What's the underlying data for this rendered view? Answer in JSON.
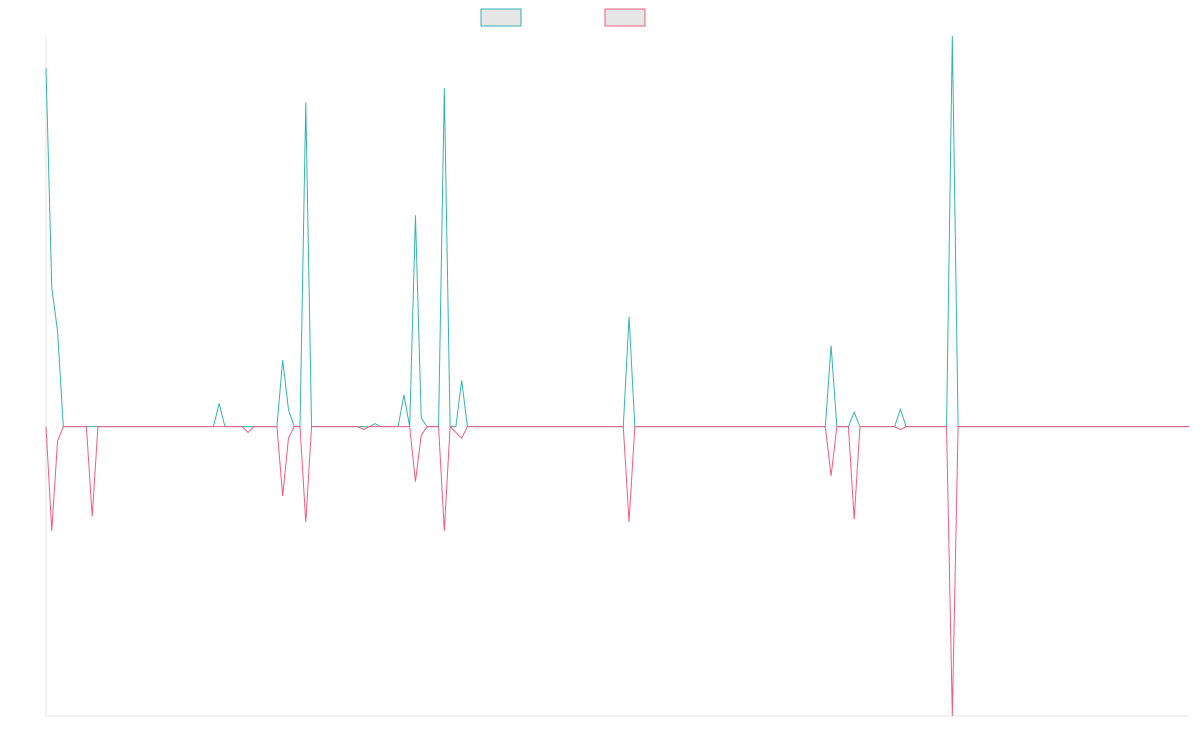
{
  "chart_data": {
    "type": "line",
    "title": "",
    "xlabel": "",
    "ylabel": "",
    "grid": false,
    "legend_placement": "top-center",
    "x_count": 199,
    "ylim": [
      -100,
      135
    ],
    "series": [
      {
        "color": "#36b3b3",
        "points": [
          [
            0,
            124
          ],
          [
            1,
            48
          ],
          [
            2,
            33
          ],
          [
            3,
            0
          ],
          [
            29,
            0
          ],
          [
            30,
            8
          ],
          [
            31,
            0
          ],
          [
            34,
            0
          ],
          [
            35,
            0
          ],
          [
            36,
            0
          ],
          [
            40,
            0
          ],
          [
            41,
            23
          ],
          [
            42,
            6
          ],
          [
            43,
            0
          ],
          [
            44,
            0
          ],
          [
            45,
            112
          ],
          [
            46,
            0
          ],
          [
            54,
            0
          ],
          [
            55,
            0
          ],
          [
            56,
            0
          ],
          [
            57,
            1
          ],
          [
            58,
            0
          ],
          [
            61,
            0
          ],
          [
            62,
            11
          ],
          [
            63,
            0
          ],
          [
            64,
            73
          ],
          [
            65,
            3
          ],
          [
            66,
            0
          ],
          [
            68,
            0
          ],
          [
            69,
            117
          ],
          [
            70,
            0
          ],
          [
            71,
            0
          ],
          [
            72,
            16
          ],
          [
            73,
            0
          ],
          [
            100,
            0
          ],
          [
            101,
            38
          ],
          [
            102,
            0
          ],
          [
            135,
            0
          ],
          [
            136,
            28
          ],
          [
            137,
            0
          ],
          [
            139,
            0
          ],
          [
            140,
            5
          ],
          [
            141,
            0
          ],
          [
            147,
            0
          ],
          [
            148,
            6
          ],
          [
            149,
            0
          ],
          [
            156,
            0
          ],
          [
            157,
            135
          ],
          [
            158,
            0
          ],
          [
            198,
            0
          ]
        ]
      },
      {
        "color": "#f25c82",
        "points": [
          [
            0,
            0
          ],
          [
            1,
            -36
          ],
          [
            2,
            -5
          ],
          [
            3,
            0
          ],
          [
            7,
            0
          ],
          [
            8,
            -31
          ],
          [
            9,
            0
          ],
          [
            34,
            0
          ],
          [
            35,
            -2
          ],
          [
            36,
            0
          ],
          [
            40,
            0
          ],
          [
            41,
            -24
          ],
          [
            42,
            -4
          ],
          [
            43,
            0
          ],
          [
            44,
            0
          ],
          [
            45,
            -33
          ],
          [
            46,
            0
          ],
          [
            54,
            0
          ],
          [
            55,
            -1
          ],
          [
            56,
            0
          ],
          [
            57,
            0
          ],
          [
            58,
            0
          ],
          [
            61,
            0
          ],
          [
            62,
            0
          ],
          [
            63,
            0
          ],
          [
            64,
            -19
          ],
          [
            65,
            -3
          ],
          [
            66,
            0
          ],
          [
            68,
            0
          ],
          [
            69,
            -36
          ],
          [
            70,
            0
          ],
          [
            71,
            -2
          ],
          [
            72,
            -4
          ],
          [
            73,
            0
          ],
          [
            100,
            0
          ],
          [
            101,
            -33
          ],
          [
            102,
            0
          ],
          [
            135,
            0
          ],
          [
            136,
            -17
          ],
          [
            137,
            0
          ],
          [
            139,
            0
          ],
          [
            140,
            -32
          ],
          [
            141,
            0
          ],
          [
            147,
            0
          ],
          [
            148,
            -1
          ],
          [
            149,
            0
          ],
          [
            156,
            0
          ],
          [
            157,
            -100
          ],
          [
            158,
            0
          ],
          [
            198,
            0
          ]
        ]
      }
    ]
  }
}
